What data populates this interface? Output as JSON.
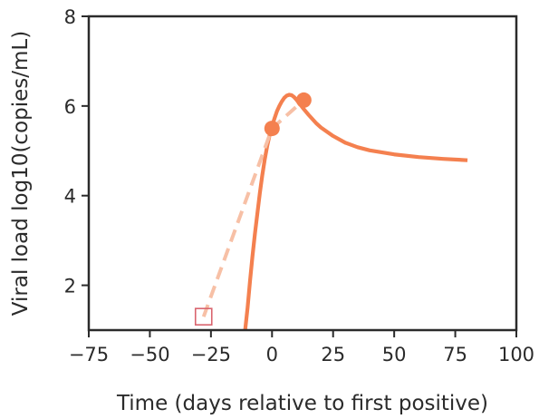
{
  "chart_data": {
    "type": "line",
    "xlabel": "Time (days relative to first positive)",
    "ylabel": "Viral load log10(copies/mL)",
    "xlim": [
      -75,
      100
    ],
    "ylim": [
      1,
      8
    ],
    "xticks": [
      -75,
      -50,
      -25,
      0,
      25,
      50,
      75,
      100
    ],
    "xtick_labels": [
      "−75",
      "−50",
      "−25",
      "0",
      "25",
      "50",
      "75",
      "100"
    ],
    "yticks": [
      2,
      4,
      6,
      8
    ],
    "ytick_labels": [
      "2",
      "4",
      "6",
      "8"
    ],
    "grid": false,
    "legend": "none",
    "colors": {
      "model_curve": "#f4804f",
      "dashed_interp": "#f7c0a6",
      "observed_points": "#f4804f",
      "start_marker": "#d9646e",
      "axes": "#2b2b2b"
    },
    "series": [
      {
        "kind": "model-curve",
        "style": "solid",
        "x": [
          -11,
          -10,
          -9,
          -8,
          -7,
          -6,
          -5,
          -4,
          -3,
          -2,
          -1,
          0,
          1,
          2,
          3,
          4,
          5,
          6,
          7,
          8,
          9,
          10,
          11,
          12,
          13,
          15,
          18,
          20,
          25,
          30,
          35,
          40,
          50,
          60,
          70,
          80
        ],
        "y": [
          1.0,
          1.5,
          2.1,
          2.65,
          3.15,
          3.6,
          4.05,
          4.45,
          4.8,
          5.1,
          5.35,
          5.55,
          5.72,
          5.88,
          6.0,
          6.1,
          6.18,
          6.23,
          6.25,
          6.24,
          6.2,
          6.14,
          6.07,
          6.0,
          5.93,
          5.8,
          5.62,
          5.52,
          5.33,
          5.18,
          5.08,
          5.01,
          4.92,
          4.86,
          4.82,
          4.79
        ]
      },
      {
        "kind": "interpolation",
        "style": "dashed",
        "x": [
          -28,
          0,
          13
        ],
        "y": [
          1.3,
          5.5,
          6.13
        ]
      }
    ],
    "points": [
      {
        "x": 0,
        "y": 5.5
      },
      {
        "x": 13,
        "y": 6.13
      }
    ],
    "start_marker": {
      "x": -28,
      "y": 1.3,
      "shape": "open-square"
    }
  }
}
